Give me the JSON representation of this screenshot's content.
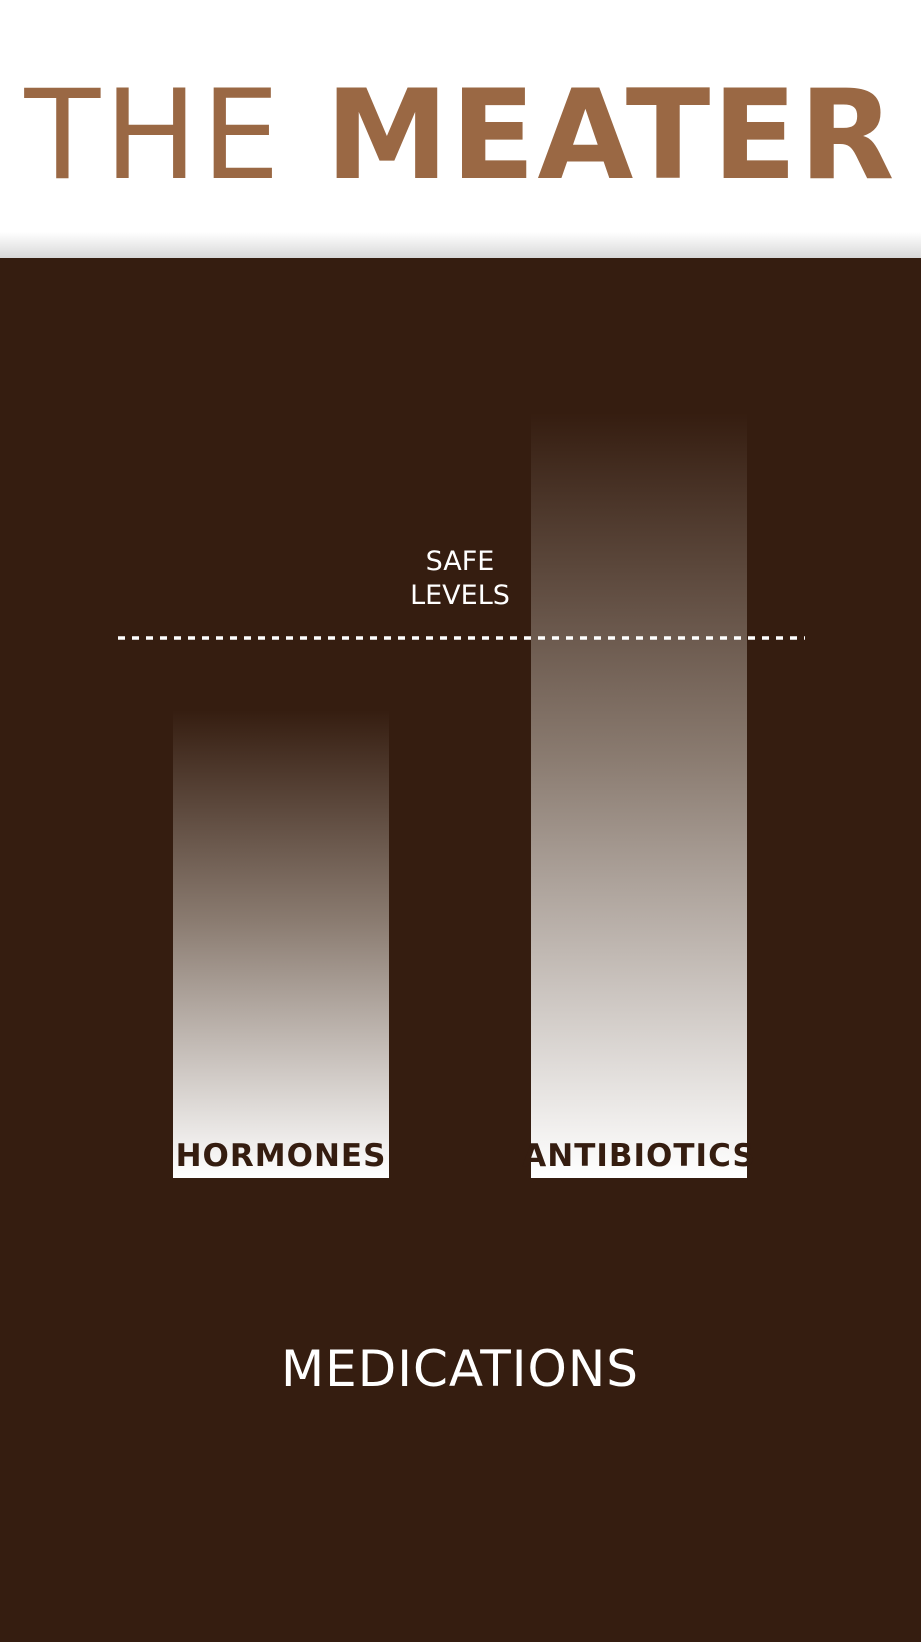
{
  "header": {
    "title_light": "THE",
    "title_bold": "MEATER"
  },
  "colors": {
    "brand": "#9a6844",
    "panel": "#351d10",
    "bar_top": "#351d10",
    "bar_bottom": "#ffffff",
    "text_light": "#ffffff",
    "bar_label": "#351d10"
  },
  "chart_data": {
    "type": "bar",
    "title": "MEDICATIONS",
    "categories": [
      "HORMONES",
      "ANTIBIOTICS"
    ],
    "values": [
      0.52,
      0.85
    ],
    "reference_line": {
      "label_lines": [
        "SAFE",
        "LEVELS"
      ],
      "value": 0.6,
      "style": "dotted"
    },
    "ylim": [
      0,
      1
    ],
    "grid": false,
    "legend": "none",
    "axes_visible": false
  }
}
